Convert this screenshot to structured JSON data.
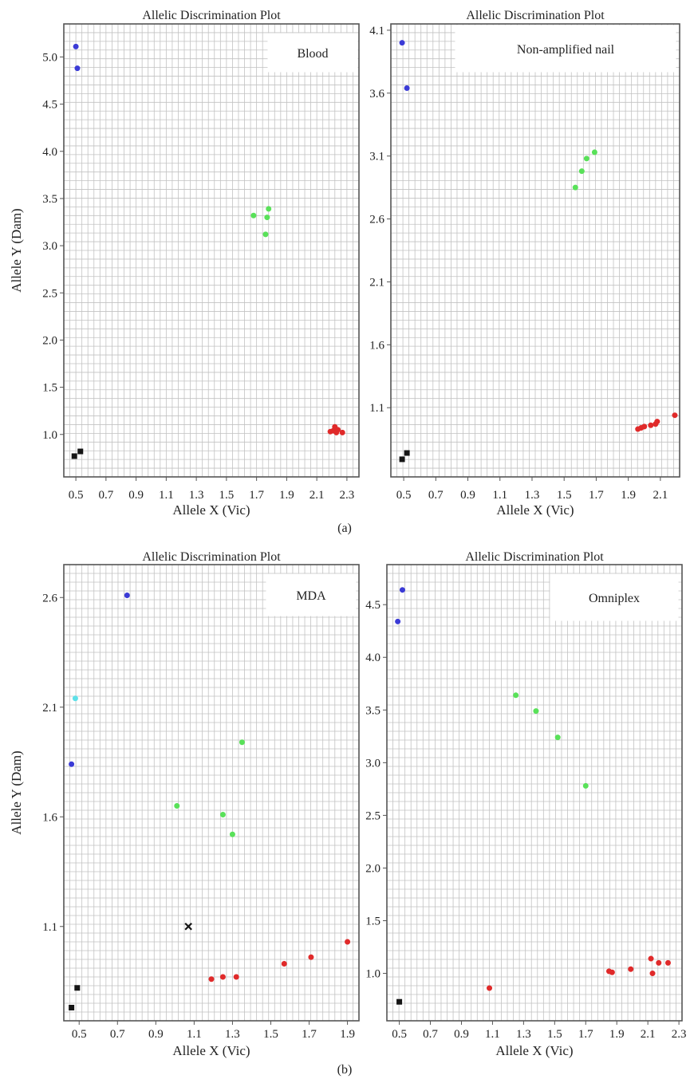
{
  "figure": {
    "captions": [
      "(a)",
      "(b)"
    ]
  },
  "colors": {
    "blue": "#3b3bd6",
    "green": "#59e159",
    "red": "#e02a2a",
    "cyan": "#5ee0e8",
    "black": "#151515",
    "grid": "#c2c2c2",
    "frame": "#555555"
  },
  "chart_data": [
    {
      "type": "scatter",
      "title": "Allelic Discrimination Plot",
      "legend_label": "Blood",
      "legend_position": "top-right",
      "xlabel": "Allele X (Vic)",
      "ylabel": "Allele Y (Dam)",
      "x_ticks": [
        "0.5",
        "0.7",
        "0.9",
        "1.1",
        "1.3",
        "1.5",
        "1.7",
        "1.9",
        "2.1",
        "2.3"
      ],
      "y_ticks": [
        "1.0",
        "1.5",
        "2.0",
        "2.5",
        "3.0",
        "3.5",
        "4.0",
        "4.5",
        "5.0"
      ],
      "xlim": [
        0.42,
        2.38
      ],
      "ylim": [
        0.55,
        5.35
      ],
      "grid": true,
      "points": [
        {
          "x": 0.5,
          "y": 5.11,
          "color": "blue"
        },
        {
          "x": 0.51,
          "y": 4.88,
          "color": "blue"
        },
        {
          "x": 1.68,
          "y": 3.32,
          "color": "green"
        },
        {
          "x": 1.78,
          "y": 3.39,
          "color": "green"
        },
        {
          "x": 1.77,
          "y": 3.3,
          "color": "green"
        },
        {
          "x": 1.76,
          "y": 3.12,
          "color": "green"
        },
        {
          "x": 2.19,
          "y": 1.03,
          "color": "red"
        },
        {
          "x": 2.21,
          "y": 1.04,
          "color": "red"
        },
        {
          "x": 2.22,
          "y": 1.08,
          "color": "red"
        },
        {
          "x": 2.23,
          "y": 1.02,
          "color": "red"
        },
        {
          "x": 2.24,
          "y": 1.05,
          "color": "red"
        },
        {
          "x": 2.27,
          "y": 1.02,
          "color": "red"
        },
        {
          "x": 0.49,
          "y": 0.77,
          "color": "black",
          "marker": "square"
        },
        {
          "x": 0.53,
          "y": 0.82,
          "color": "black",
          "marker": "square"
        }
      ]
    },
    {
      "type": "scatter",
      "title": "Allelic Discrimination Plot",
      "legend_label": "Non-amplified nail",
      "legend_position": "top-right",
      "xlabel": "Allele X (Vic)",
      "ylabel": "",
      "x_ticks": [
        "0.5",
        "0.7",
        "0.9",
        "1.1",
        "1.3",
        "1.5",
        "1.7",
        "1.9",
        "2.1"
      ],
      "y_ticks": [
        "1.1",
        "1.6",
        "2.1",
        "2.6",
        "3.1",
        "3.6",
        "4.1"
      ],
      "xlim": [
        0.42,
        2.22
      ],
      "ylim": [
        0.55,
        4.15
      ],
      "grid": true,
      "points": [
        {
          "x": 0.49,
          "y": 4.0,
          "color": "blue"
        },
        {
          "x": 0.52,
          "y": 3.64,
          "color": "blue"
        },
        {
          "x": 1.57,
          "y": 2.85,
          "color": "green"
        },
        {
          "x": 1.61,
          "y": 2.98,
          "color": "green"
        },
        {
          "x": 1.64,
          "y": 3.08,
          "color": "green"
        },
        {
          "x": 1.69,
          "y": 3.13,
          "color": "green"
        },
        {
          "x": 1.96,
          "y": 0.93,
          "color": "red"
        },
        {
          "x": 1.98,
          "y": 0.94,
          "color": "red"
        },
        {
          "x": 2.0,
          "y": 0.95,
          "color": "red"
        },
        {
          "x": 2.04,
          "y": 0.96,
          "color": "red"
        },
        {
          "x": 2.07,
          "y": 0.97,
          "color": "red"
        },
        {
          "x": 2.08,
          "y": 0.99,
          "color": "red"
        },
        {
          "x": 2.19,
          "y": 1.04,
          "color": "red"
        },
        {
          "x": 0.49,
          "y": 0.69,
          "color": "black",
          "marker": "square"
        },
        {
          "x": 0.52,
          "y": 0.74,
          "color": "black",
          "marker": "square"
        }
      ]
    },
    {
      "type": "scatter",
      "title": "Allelic Discrimination Plot",
      "legend_label": "MDA",
      "legend_position": "top-right",
      "xlabel": "Allele X (Vic)",
      "ylabel": "Allele Y (Dam)",
      "x_ticks": [
        "0.5",
        "0.7",
        "0.9",
        "1.1",
        "1.3",
        "1.5",
        "1.7",
        "1.9"
      ],
      "y_ticks": [
        "1.1",
        "1.6",
        "2.1",
        "2.6"
      ],
      "xlim": [
        0.42,
        1.96
      ],
      "ylim": [
        0.67,
        2.75
      ],
      "grid": true,
      "points": [
        {
          "x": 0.75,
          "y": 2.61,
          "color": "blue"
        },
        {
          "x": 0.48,
          "y": 2.14,
          "color": "cyan"
        },
        {
          "x": 0.46,
          "y": 1.84,
          "color": "blue"
        },
        {
          "x": 1.35,
          "y": 1.94,
          "color": "green"
        },
        {
          "x": 1.01,
          "y": 1.65,
          "color": "green"
        },
        {
          "x": 1.25,
          "y": 1.61,
          "color": "green"
        },
        {
          "x": 1.3,
          "y": 1.52,
          "color": "green"
        },
        {
          "x": 1.07,
          "y": 1.1,
          "color": "black",
          "marker": "cross"
        },
        {
          "x": 1.19,
          "y": 0.86,
          "color": "red"
        },
        {
          "x": 1.25,
          "y": 0.87,
          "color": "red"
        },
        {
          "x": 1.32,
          "y": 0.87,
          "color": "red"
        },
        {
          "x": 1.57,
          "y": 0.93,
          "color": "red"
        },
        {
          "x": 1.71,
          "y": 0.96,
          "color": "red"
        },
        {
          "x": 1.9,
          "y": 1.03,
          "color": "red"
        },
        {
          "x": 0.49,
          "y": 0.82,
          "color": "black",
          "marker": "square"
        },
        {
          "x": 0.46,
          "y": 0.73,
          "color": "black",
          "marker": "square"
        }
      ]
    },
    {
      "type": "scatter",
      "title": "Allelic Discrimination Plot",
      "legend_label": "Omniplex",
      "legend_position": "top-right",
      "xlabel": "Allele X (Vic)",
      "ylabel": "",
      "x_ticks": [
        "0.5",
        "0.7",
        "0.9",
        "1.1",
        "1.3",
        "1.5",
        "1.7",
        "1.9",
        "2.1",
        "2.3"
      ],
      "y_ticks": [
        "1.0",
        "1.5",
        "2.0",
        "2.5",
        "3.0",
        "3.5",
        "4.0",
        "4.5"
      ],
      "xlim": [
        0.42,
        2.32
      ],
      "ylim": [
        0.55,
        4.88
      ],
      "grid": true,
      "points": [
        {
          "x": 0.52,
          "y": 4.64,
          "color": "blue"
        },
        {
          "x": 0.49,
          "y": 4.34,
          "color": "blue"
        },
        {
          "x": 1.25,
          "y": 3.64,
          "color": "green"
        },
        {
          "x": 1.38,
          "y": 3.49,
          "color": "green"
        },
        {
          "x": 1.52,
          "y": 3.24,
          "color": "green"
        },
        {
          "x": 1.7,
          "y": 2.78,
          "color": "green"
        },
        {
          "x": 1.08,
          "y": 0.86,
          "color": "red"
        },
        {
          "x": 1.85,
          "y": 1.02,
          "color": "red"
        },
        {
          "x": 1.87,
          "y": 1.01,
          "color": "red"
        },
        {
          "x": 1.99,
          "y": 1.04,
          "color": "red"
        },
        {
          "x": 2.12,
          "y": 1.14,
          "color": "red"
        },
        {
          "x": 2.13,
          "y": 1.0,
          "color": "red"
        },
        {
          "x": 2.17,
          "y": 1.1,
          "color": "red"
        },
        {
          "x": 2.23,
          "y": 1.1,
          "color": "red"
        },
        {
          "x": 0.5,
          "y": 0.73,
          "color": "black",
          "marker": "square"
        }
      ]
    }
  ]
}
